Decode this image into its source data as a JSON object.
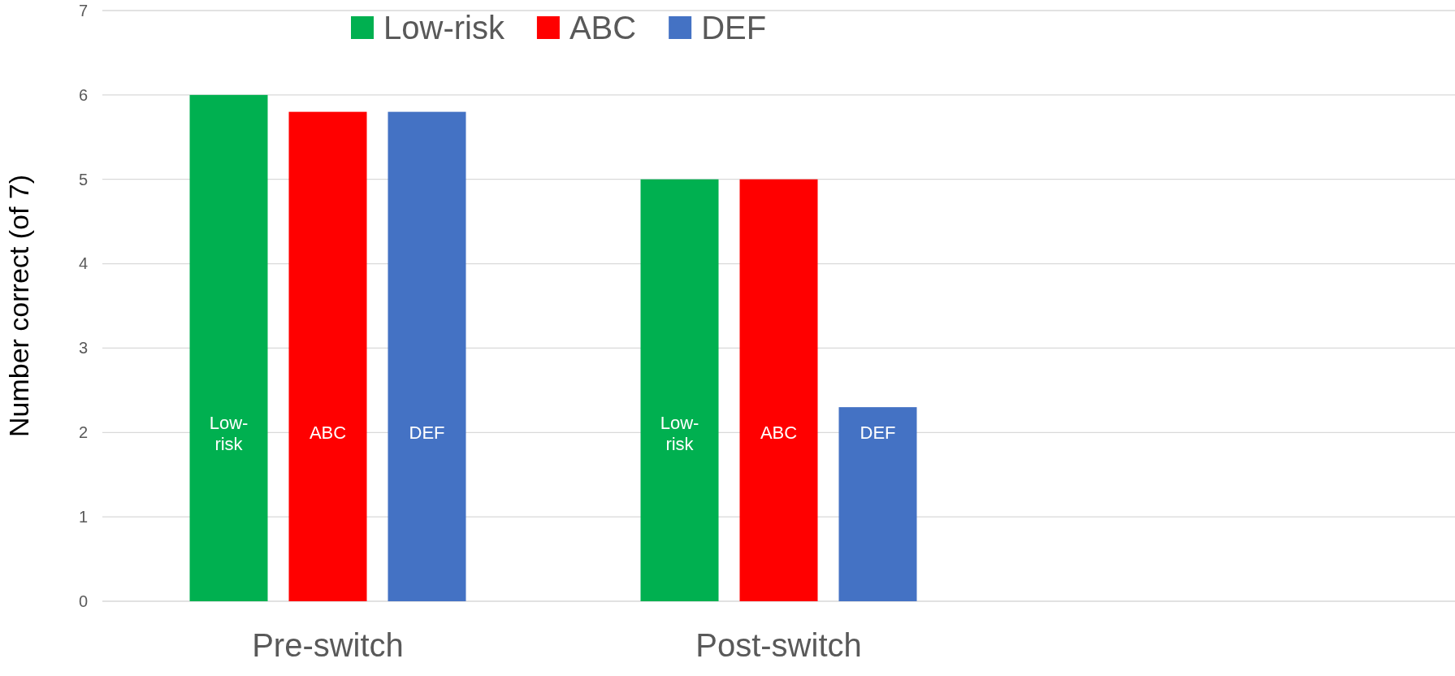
{
  "chart_data": {
    "type": "bar",
    "ylabel": "Number correct (of 7)",
    "categories": [
      "Pre-switch",
      "Post-switch",
      null
    ],
    "series": [
      {
        "name": "Low-risk",
        "color": "#00b050",
        "values": [
          6,
          5,
          null
        ]
      },
      {
        "name": "ABC",
        "color": "#ff0000",
        "values": [
          5.8,
          5,
          null
        ]
      },
      {
        "name": "DEF",
        "color": "#4472c4",
        "values": [
          5.8,
          2.3,
          null
        ]
      }
    ],
    "ylim": [
      0,
      7
    ],
    "yticks": [
      0,
      1,
      2,
      3,
      4,
      5,
      6,
      7
    ],
    "grid": "y",
    "legend": "top"
  }
}
